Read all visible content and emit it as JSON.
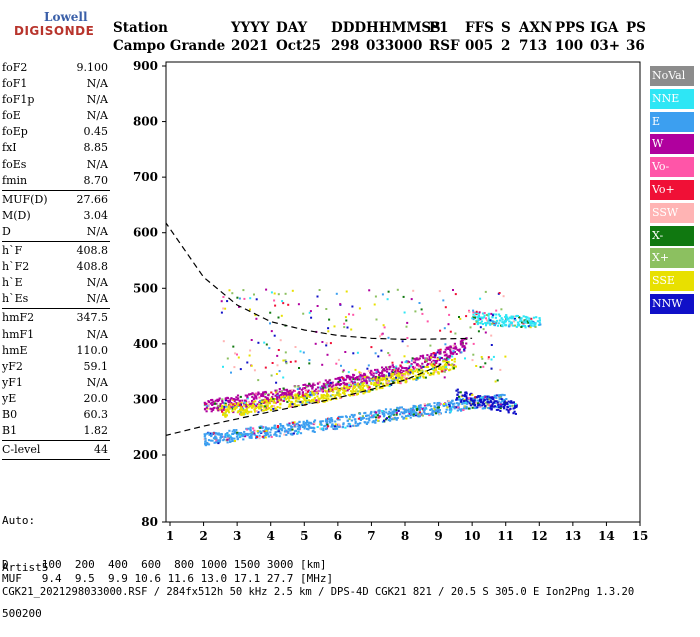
{
  "logo": {
    "line1": "Lowell",
    "line2": "DIGISONDE"
  },
  "header": {
    "labels": [
      "Station",
      "YYYY",
      "DAY",
      "DDD",
      "HHMMSS",
      "P1",
      "FFS",
      "S",
      "AXN",
      "PPS",
      "IGA",
      "PS"
    ],
    "values": [
      "Campo Grande",
      "2021",
      "Oct25",
      "298",
      "033000",
      "RSF",
      "005",
      "2",
      "713",
      "100",
      "03+",
      "36"
    ]
  },
  "params_groups": [
    [
      {
        "key": "foF2",
        "val": "9.100"
      },
      {
        "key": "foF1",
        "val": "N/A"
      },
      {
        "key": "foF1p",
        "val": "N/A"
      },
      {
        "key": "foE",
        "val": "N/A"
      },
      {
        "key": "foEp",
        "val": "0.45"
      },
      {
        "key": "fxI",
        "val": "8.85"
      },
      {
        "key": "foEs",
        "val": "N/A"
      },
      {
        "key": "fmin",
        "val": "8.70"
      }
    ],
    [
      {
        "key": "MUF(D)",
        "val": "27.66"
      },
      {
        "key": "M(D)",
        "val": "3.04"
      },
      {
        "key": "D",
        "val": "N/A"
      }
    ],
    [
      {
        "key": "h`F",
        "val": "408.8"
      },
      {
        "key": "h`F2",
        "val": "408.8"
      },
      {
        "key": "h`E",
        "val": "N/A"
      },
      {
        "key": "h`Es",
        "val": "N/A"
      }
    ],
    [
      {
        "key": "hmF2",
        "val": "347.5"
      },
      {
        "key": "hmF1",
        "val": "N/A"
      },
      {
        "key": "hmE",
        "val": "110.0"
      },
      {
        "key": "yF2",
        "val": "59.1"
      },
      {
        "key": "yF1",
        "val": "N/A"
      },
      {
        "key": "yE",
        "val": "20.0"
      },
      {
        "key": "B0",
        "val": "60.3"
      },
      {
        "key": "B1",
        "val": "1.82"
      }
    ],
    [
      {
        "key": "C-level",
        "val": "44"
      }
    ]
  ],
  "auto": {
    "line1": "Auto:",
    "line2": "Artist5",
    "line3": "500200"
  },
  "footer": {
    "d_row": "D     100  200  400  600  800 1000 1500 3000 [km]",
    "muf_row": "MUF   9.4  9.5  9.9 10.6 11.6 13.0 17.1 27.7 [MHz]",
    "info": "CGK21_2021298033000.RSF / 284fx512h 50 kHz 2.5 km / DPS-4D CGK21 821 / 20.5 S 305.0 E Ion2Png 1.3.20"
  },
  "legend": [
    {
      "label": "NoVal",
      "color": "#8c8c8c"
    },
    {
      "label": "NNE",
      "color": "#2ee6f5"
    },
    {
      "label": "E",
      "color": "#3c9ff0"
    },
    {
      "label": "W",
      "color": "#b0009e"
    },
    {
      "label": "Vo-",
      "color": "#ff55a8"
    },
    {
      "label": "Vo+",
      "color": "#f01036"
    },
    {
      "label": "SSW",
      "color": "#ffb4b4"
    },
    {
      "label": "X-",
      "color": "#107810"
    },
    {
      "label": "X+",
      "color": "#8cc060"
    },
    {
      "label": "SSE",
      "color": "#e8e000"
    },
    {
      "label": "NNW",
      "color": "#1010c8"
    }
  ],
  "chart_data": {
    "type": "scatter",
    "title": "",
    "xlabel": "",
    "ylabel": "",
    "xlim": [
      0.85,
      15
    ],
    "ylim": [
      80,
      900
    ],
    "x_ticks": [
      1,
      2,
      3,
      4,
      5,
      6,
      7,
      8,
      9,
      10,
      11,
      12,
      13,
      14,
      15
    ],
    "y_ticks": [
      80,
      200,
      300,
      400,
      500,
      600,
      700,
      800,
      900
    ],
    "traces": [
      {
        "name": "E",
        "color": "#3c9ff0",
        "x": [
          2.0,
          3.0,
          4.0,
          5.0,
          6.0,
          7.0,
          8.0,
          9.0,
          10.0,
          11.0
        ],
        "y": [
          230,
          238,
          245,
          252,
          260,
          270,
          278,
          286,
          295,
          300
        ]
      },
      {
        "name": "W",
        "color": "#b0009e",
        "x": [
          2.0,
          3.0,
          4.0,
          5.0,
          6.0,
          7.0,
          8.0,
          9.0,
          9.8
        ],
        "y": [
          288,
          298,
          308,
          318,
          330,
          344,
          360,
          380,
          402
        ]
      },
      {
        "name": "SSE",
        "color": "#e8e000",
        "x": [
          2.5,
          3.5,
          4.5,
          5.5,
          6.5,
          7.5,
          8.5,
          9.5
        ],
        "y": [
          280,
          288,
          298,
          308,
          320,
          336,
          350,
          368
        ]
      },
      {
        "name": "NNW",
        "color": "#1010c8",
        "x": [
          9.5,
          10.0,
          10.5,
          11.0,
          11.3
        ],
        "y": [
          310,
          300,
          295,
          290,
          285
        ]
      },
      {
        "name": "NNE",
        "color": "#2ee6f5",
        "x": [
          10.0,
          10.5,
          11.0,
          11.5,
          12.0
        ],
        "y": [
          448,
          446,
          444,
          442,
          442
        ]
      }
    ],
    "profile_curve": {
      "x": [
        0.85,
        2,
        3,
        4,
        5,
        6,
        7,
        8,
        9,
        10
      ],
      "y": [
        620,
        520,
        470,
        440,
        425,
        415,
        410,
        408,
        408.8,
        410
      ]
    },
    "trace_curve": {
      "x": [
        0.85,
        2,
        3,
        4,
        5,
        6,
        7,
        8,
        9,
        9.1
      ],
      "y": [
        235,
        252,
        265,
        278,
        290,
        303,
        318,
        335,
        360,
        365
      ]
    }
  }
}
